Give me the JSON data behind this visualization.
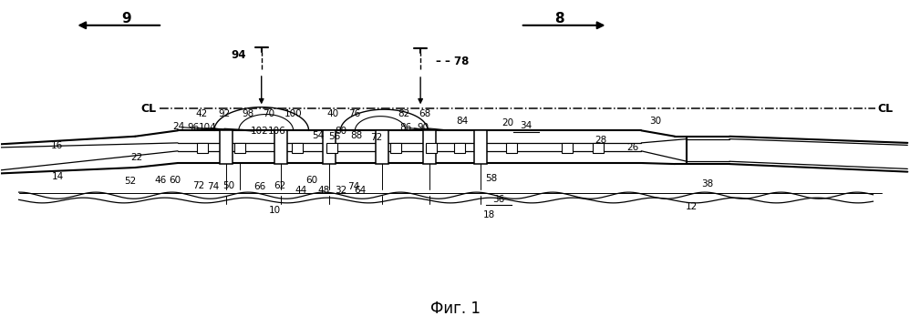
{
  "fig_width": 9.98,
  "fig_height": 3.58,
  "dpi": 100,
  "bg_color": "#ffffff",
  "lc": "#000000",
  "caption": "Фиг. 1",
  "caption_fontsize": 12
}
